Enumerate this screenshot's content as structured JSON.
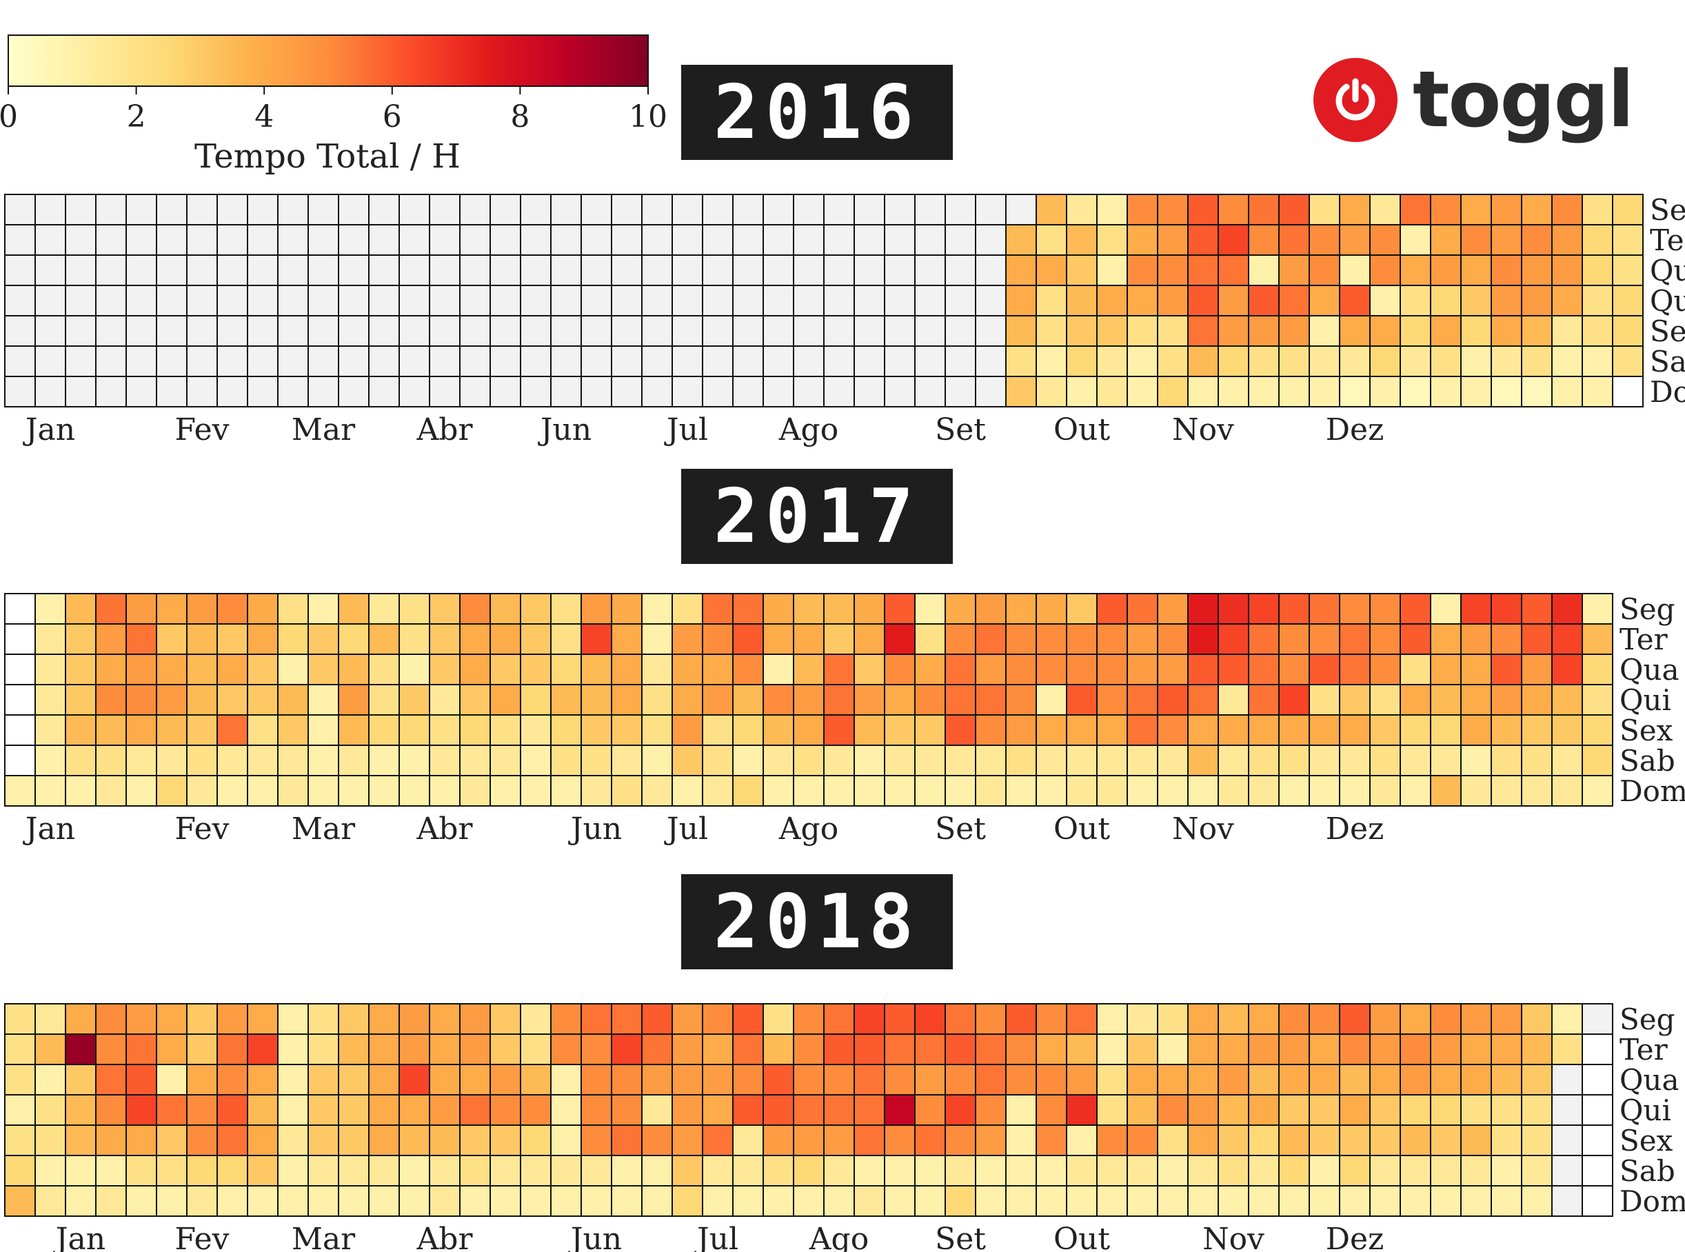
{
  "colorbar": {
    "label": "Tempo Total / H",
    "ticks": [
      "0",
      "2",
      "4",
      "6",
      "8",
      "10"
    ],
    "vmin": 0,
    "vmax": 10
  },
  "brand": {
    "name": "toggl",
    "icon": "power-icon",
    "color": "#e01b22"
  },
  "day_labels": [
    "Seg",
    "Ter",
    "Qua",
    "Qui",
    "Sex",
    "Sab",
    "Dom"
  ],
  "chart_data": [
    {
      "type": "heatmap",
      "title": "2016",
      "rows": [
        "Seg",
        "Ter",
        "Qua",
        "Qui",
        "Sex",
        "Sab",
        "Dom"
      ],
      "month_ticks": [
        {
          "label": "Jan",
          "week": 1
        },
        {
          "label": "Fev",
          "week": 6
        },
        {
          "label": "Mar",
          "week": 10
        },
        {
          "label": "Abr",
          "week": 14
        },
        {
          "label": "Jun",
          "week": 18
        },
        {
          "label": "Jul",
          "week": 22
        },
        {
          "label": "Ago",
          "week": 26
        },
        {
          "label": "Set",
          "week": 31
        },
        {
          "label": "Out",
          "week": 35
        },
        {
          "label": "Nov",
          "week": 39
        },
        {
          "label": "Dez",
          "week": 44
        }
      ],
      "values": [
        [
          -1,
          -1,
          -1,
          -1,
          -1,
          -1,
          -1,
          -1,
          -1,
          -1,
          -1,
          -1,
          -1,
          -1,
          -1,
          -1,
          -1,
          -1,
          -1,
          -1,
          -1,
          -1,
          -1,
          -1,
          -1,
          -1,
          -1,
          -1,
          -1,
          -1,
          -1,
          -1,
          -1,
          -1,
          3.5,
          1.5,
          1,
          5,
          5,
          6,
          5,
          5.5,
          6,
          2,
          4,
          1.5,
          5.5,
          5,
          4,
          4.5,
          4,
          5,
          2,
          2.5
        ],
        [
          -1,
          -1,
          -1,
          -1,
          -1,
          -1,
          -1,
          -1,
          -1,
          -1,
          -1,
          -1,
          -1,
          -1,
          -1,
          -1,
          -1,
          -1,
          -1,
          -1,
          -1,
          -1,
          -1,
          -1,
          -1,
          -1,
          -1,
          -1,
          -1,
          -1,
          -1,
          -1,
          -1,
          3.5,
          2,
          3.5,
          2,
          4,
          4.5,
          6,
          6.5,
          5,
          5.5,
          5,
          4.5,
          5,
          1,
          4,
          5,
          4.5,
          5,
          4.5,
          2.5,
          2
        ],
        [
          -1,
          -1,
          -1,
          -1,
          -1,
          -1,
          -1,
          -1,
          -1,
          -1,
          -1,
          -1,
          -1,
          -1,
          -1,
          -1,
          -1,
          -1,
          -1,
          -1,
          -1,
          -1,
          -1,
          -1,
          -1,
          -1,
          -1,
          -1,
          -1,
          -1,
          -1,
          -1,
          -1,
          4,
          4,
          3,
          1,
          5,
          5,
          5.5,
          5.5,
          1,
          4.5,
          5,
          1,
          5,
          4,
          4.5,
          4,
          5,
          4.5,
          4.5,
          2.5,
          2
        ],
        [
          -1,
          -1,
          -1,
          -1,
          -1,
          -1,
          -1,
          -1,
          -1,
          -1,
          -1,
          -1,
          -1,
          -1,
          -1,
          -1,
          -1,
          -1,
          -1,
          -1,
          -1,
          -1,
          -1,
          -1,
          -1,
          -1,
          -1,
          -1,
          -1,
          -1,
          -1,
          -1,
          -1,
          4,
          2,
          3.5,
          4,
          4,
          4.5,
          6,
          4.5,
          6,
          5.5,
          4,
          6,
          1,
          2,
          2.5,
          3,
          4.5,
          4.5,
          4,
          2,
          2.5
        ],
        [
          -1,
          -1,
          -1,
          -1,
          -1,
          -1,
          -1,
          -1,
          -1,
          -1,
          -1,
          -1,
          -1,
          -1,
          -1,
          -1,
          -1,
          -1,
          -1,
          -1,
          -1,
          -1,
          -1,
          -1,
          -1,
          -1,
          -1,
          -1,
          -1,
          -1,
          -1,
          -1,
          -1,
          3.5,
          2,
          3,
          3,
          2,
          2,
          5.5,
          4.5,
          4.5,
          4.5,
          1,
          4,
          4,
          2.5,
          4,
          2.5,
          4,
          3.5,
          1.5,
          2,
          2.5
        ],
        [
          -1,
          -1,
          -1,
          -1,
          -1,
          -1,
          -1,
          -1,
          -1,
          -1,
          -1,
          -1,
          -1,
          -1,
          -1,
          -1,
          -1,
          -1,
          -1,
          -1,
          -1,
          -1,
          -1,
          -1,
          -1,
          -1,
          -1,
          -1,
          -1,
          -1,
          -1,
          -1,
          -1,
          2,
          1,
          2.5,
          1.5,
          1,
          2,
          3.5,
          2.5,
          2,
          2,
          1.5,
          1.5,
          2.5,
          1.5,
          2,
          1,
          1.5,
          2,
          1,
          1,
          2
        ],
        [
          -1,
          -1,
          -1,
          -1,
          -1,
          -1,
          -1,
          -1,
          -1,
          -1,
          -1,
          -1,
          -1,
          -1,
          -1,
          -1,
          -1,
          -1,
          -1,
          -1,
          -1,
          -1,
          -1,
          -1,
          -1,
          -1,
          -1,
          -1,
          -1,
          -1,
          -1,
          -1,
          -1,
          3,
          1.5,
          1,
          1.5,
          1,
          2.5,
          1,
          1,
          1,
          1,
          1,
          0.5,
          1,
          0.5,
          1,
          1,
          0.5,
          0.5,
          1,
          1,
          0
        ]
      ]
    },
    {
      "type": "heatmap",
      "title": "2017",
      "rows": [
        "Seg",
        "Ter",
        "Qua",
        "Qui",
        "Sex",
        "Sab",
        "Dom"
      ],
      "month_ticks": [
        {
          "label": "Jan",
          "week": 1
        },
        {
          "label": "Fev",
          "week": 6
        },
        {
          "label": "Mar",
          "week": 10
        },
        {
          "label": "Abr",
          "week": 14
        },
        {
          "label": "Jun",
          "week": 19
        },
        {
          "label": "Jul",
          "week": 22
        },
        {
          "label": "Ago",
          "week": 26
        },
        {
          "label": "Set",
          "week": 31
        },
        {
          "label": "Out",
          "week": 35
        },
        {
          "label": "Nov",
          "week": 39
        },
        {
          "label": "Dez",
          "week": 44
        }
      ],
      "values": [
        [
          0,
          1,
          3.5,
          5.5,
          4.5,
          4,
          4.5,
          5,
          4,
          2,
          1,
          3.5,
          1.5,
          2,
          3,
          5,
          3.5,
          3,
          2,
          4.5,
          4,
          1,
          2,
          5.5,
          5.5,
          4,
          3.5,
          3.5,
          4,
          6,
          1,
          4,
          4.5,
          4,
          4,
          3,
          6,
          5.5,
          4.5,
          7.5,
          7,
          6.5,
          6,
          5.5,
          5,
          5,
          6,
          1,
          6.5,
          6.5,
          6,
          7,
          1
        ],
        [
          0,
          1.5,
          3,
          4.5,
          5.5,
          3,
          3.5,
          3,
          4,
          2.5,
          3,
          2.5,
          3.5,
          2,
          3,
          4,
          4,
          3,
          2,
          6.5,
          4,
          1,
          4.5,
          5,
          6,
          4,
          4,
          3,
          4,
          7.5,
          2,
          5,
          5.5,
          5,
          5,
          5,
          5,
          4.5,
          5,
          7.5,
          6.5,
          5.5,
          5,
          5,
          5.5,
          5,
          6,
          4,
          4.5,
          5,
          6,
          6.5,
          3.5
        ],
        [
          0,
          1.5,
          3,
          4,
          4.5,
          4,
          3.5,
          4,
          3,
          1,
          3,
          3.5,
          2,
          1,
          3,
          4,
          3,
          3,
          2.5,
          3.5,
          4,
          1.5,
          4,
          4,
          5,
          1,
          3.5,
          5.5,
          3,
          5,
          4,
          5.5,
          4.5,
          5,
          5,
          5,
          5,
          4.5,
          4.5,
          6,
          6,
          5.5,
          5,
          6,
          5.5,
          5,
          2,
          4,
          4,
          6,
          4.5,
          6.5,
          2.5
        ],
        [
          0,
          1.5,
          3,
          5,
          5,
          4.5,
          3.5,
          3,
          3,
          3.5,
          1,
          4.5,
          2,
          3,
          1.5,
          3,
          4,
          2.5,
          3.5,
          3.5,
          4,
          2,
          4,
          4.5,
          3.5,
          5,
          4.5,
          5.5,
          4.5,
          4,
          5,
          5.5,
          5.5,
          5,
          1,
          6,
          5,
          5.5,
          6,
          5.5,
          1.5,
          5.5,
          6.5,
          2,
          3,
          2,
          4,
          3.5,
          4,
          4.5,
          4,
          3.5,
          2
        ],
        [
          0,
          1.5,
          3.5,
          3.5,
          4,
          3.5,
          3,
          5.5,
          2,
          3,
          1,
          3.5,
          2.5,
          2.5,
          2,
          2.5,
          2,
          1.5,
          2.5,
          3,
          3,
          2,
          4.5,
          2,
          2.5,
          3.5,
          4,
          6,
          3.5,
          3,
          3,
          6,
          5,
          4.5,
          4,
          4,
          4,
          5.5,
          5,
          4,
          4,
          4,
          4,
          4,
          4,
          3,
          2.5,
          2.5,
          4,
          3.5,
          3,
          3,
          2.5
        ],
        [
          0,
          1,
          2,
          2,
          1.5,
          1.5,
          2,
          1.5,
          1.5,
          1.5,
          1,
          1.5,
          1,
          1,
          1.5,
          1.5,
          1.5,
          1,
          2,
          2,
          1.5,
          1,
          3,
          2,
          1,
          1.5,
          2,
          1.5,
          1,
          1.5,
          1.5,
          1.5,
          1.5,
          2,
          1.5,
          1.5,
          1.5,
          1.5,
          1.5,
          3.5,
          1.5,
          2,
          2,
          1.5,
          1.5,
          2,
          1.5,
          1.5,
          1,
          2,
          2,
          1.5,
          2.5
        ],
        [
          1,
          1,
          1,
          1.5,
          1,
          2.5,
          1.5,
          1,
          1,
          1.5,
          1,
          1,
          1,
          1,
          1,
          1.5,
          1,
          1,
          1,
          1.5,
          2,
          1.5,
          1,
          1.5,
          2.5,
          1,
          1,
          1,
          1,
          1,
          1,
          1,
          1.5,
          1,
          1,
          1.5,
          1.5,
          1,
          1,
          1,
          1.5,
          1.5,
          1,
          1,
          1,
          1.5,
          1,
          3.5,
          1.5,
          1.5,
          1.5,
          1.5,
          1
        ]
      ]
    },
    {
      "type": "heatmap",
      "title": "2018",
      "rows": [
        "Seg",
        "Ter",
        "Qua",
        "Qui",
        "Sex",
        "Sab",
        "Dom"
      ],
      "month_ticks": [
        {
          "label": "Jan",
          "week": 2
        },
        {
          "label": "Fev",
          "week": 6
        },
        {
          "label": "Mar",
          "week": 10
        },
        {
          "label": "Abr",
          "week": 14
        },
        {
          "label": "Jun",
          "week": 19
        },
        {
          "label": "Jul",
          "week": 23
        },
        {
          "label": "Ago",
          "week": 27
        },
        {
          "label": "Set",
          "week": 31
        },
        {
          "label": "Out",
          "week": 35
        },
        {
          "label": "Nov",
          "week": 40
        },
        {
          "label": "Dez",
          "week": 44
        }
      ],
      "values": [
        [
          2,
          1.5,
          4,
          5,
          4.5,
          4,
          3,
          4.5,
          4,
          1,
          2,
          3,
          4,
          4.5,
          4,
          4.5,
          3,
          1.5,
          5,
          5.5,
          5.5,
          6,
          4.5,
          5,
          6,
          2,
          5,
          5.5,
          6.5,
          6,
          6.5,
          5.5,
          5,
          6,
          5,
          5.5,
          1,
          1.5,
          2,
          4,
          3.5,
          4,
          5,
          5,
          6,
          4.5,
          4,
          5,
          4.5,
          4.5,
          3,
          1,
          -1
        ],
        [
          2,
          3.5,
          9.5,
          5,
          5.5,
          4,
          3,
          5.5,
          6.5,
          1,
          2,
          3.5,
          4,
          4.5,
          4,
          4.5,
          3,
          2,
          5,
          5,
          6.5,
          5.5,
          4.5,
          4,
          5.5,
          3.5,
          5,
          6,
          6,
          5.5,
          5.5,
          6,
          5.5,
          5,
          4,
          3.5,
          1,
          3,
          1,
          4,
          4,
          4.5,
          4.5,
          4,
          5,
          4.5,
          5,
          4.5,
          4,
          4,
          3.5,
          2,
          0
        ],
        [
          2,
          1,
          3,
          5.5,
          6,
          1,
          4,
          5,
          4,
          1,
          3,
          3,
          4,
          6.5,
          4,
          4,
          4.5,
          3.5,
          1,
          5,
          5,
          4.5,
          4.5,
          4.5,
          5,
          6,
          5,
          5,
          5.5,
          5,
          4.5,
          5,
          5.5,
          5,
          5,
          4.5,
          2,
          4,
          4,
          4,
          4.5,
          3.5,
          4,
          4,
          3.5,
          4,
          4.5,
          4,
          4,
          3.5,
          3,
          -1,
          0
        ],
        [
          1,
          2,
          3.5,
          5,
          6.5,
          5.5,
          5,
          6,
          3.5,
          1,
          3,
          3,
          4,
          4,
          4.5,
          5.5,
          5,
          5,
          1,
          5,
          5,
          1.5,
          4.5,
          4,
          6,
          6,
          5.5,
          5.5,
          5.5,
          8.5,
          5,
          6.5,
          5,
          1,
          5,
          7,
          2,
          3.5,
          5,
          4.5,
          3.5,
          4,
          3,
          3,
          4,
          3,
          2.5,
          2.5,
          2,
          2,
          2,
          -1,
          0
        ],
        [
          2,
          2,
          3.5,
          4,
          4,
          3,
          5,
          5.5,
          4,
          1.5,
          3,
          3,
          4,
          3.5,
          3.5,
          3,
          3,
          2.5,
          1,
          5,
          5.5,
          5,
          4.5,
          5.5,
          1.5,
          4.5,
          4.5,
          4.5,
          5.5,
          5,
          5.5,
          5,
          4.5,
          1,
          5,
          1,
          5,
          5,
          2,
          4,
          3,
          2.5,
          3.5,
          3,
          3,
          3,
          3.5,
          3,
          3.5,
          2,
          2,
          -1,
          0
        ],
        [
          2.5,
          1,
          1,
          1,
          2,
          2,
          2.5,
          2.5,
          3,
          1,
          1.5,
          1.5,
          1.5,
          1,
          1.5,
          2,
          1.5,
          1.5,
          1.5,
          1.5,
          1,
          1,
          3,
          1.5,
          1.5,
          2,
          2.5,
          1.5,
          1,
          1,
          1,
          1.5,
          1,
          1,
          1,
          1.5,
          1.5,
          1.5,
          1,
          1.5,
          2,
          1.5,
          2.5,
          1,
          2.5,
          1.5,
          1.5,
          1.5,
          1.5,
          1,
          1.5,
          -1,
          0
        ],
        [
          3.5,
          1.5,
          1,
          1.5,
          1,
          1,
          1.5,
          1,
          1,
          1,
          1,
          1,
          1,
          1,
          1.5,
          1,
          1,
          1,
          1,
          1,
          1,
          1,
          2.5,
          1,
          1,
          1,
          1,
          1,
          1.5,
          1,
          1,
          2.5,
          1,
          1,
          1,
          1,
          1,
          1,
          1,
          1,
          1,
          1,
          1,
          1,
          1,
          1,
          1,
          1,
          1,
          1,
          1,
          -1,
          0
        ]
      ]
    }
  ]
}
